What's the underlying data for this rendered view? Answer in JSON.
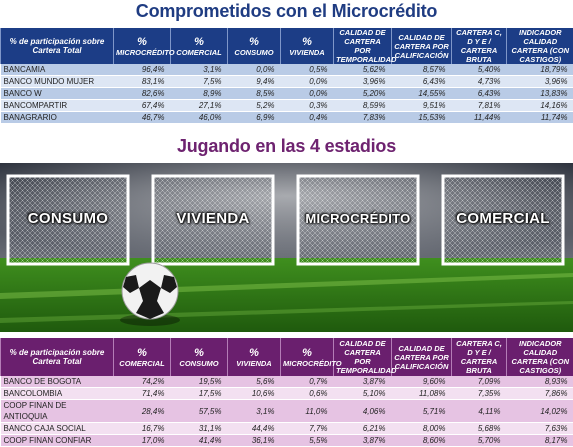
{
  "section1": {
    "title": "Comprometidos con el Microcrédito",
    "header_first": "% de participación sobre Cartera Total",
    "headers": [
      {
        "big": "%",
        "small": "MICROCRÉDITO"
      },
      {
        "big": "%",
        "small": "COMERCIAL"
      },
      {
        "big": "%",
        "small": "CONSUMO"
      },
      {
        "big": "%",
        "small": "VIVIENDA"
      },
      {
        "big": "",
        "small": "CALIDAD DE CARTERA POR TEMPORALIDAD"
      },
      {
        "big": "",
        "small": "CALIDAD DE CARTERA POR CALIFICACIÓN"
      },
      {
        "big": "",
        "small": "CARTERA C, D Y E / CARTERA BRUTA"
      },
      {
        "big": "",
        "small": "INDICADOR CALIDAD CARTERA (CON CASTIGOS)"
      }
    ],
    "rows": [
      {
        "name": "BANCAMIA",
        "values": [
          "96,4%",
          "3,1%",
          "0,0%",
          "0,5%",
          "5,62%",
          "8,57%",
          "5,40%",
          "18,79%"
        ]
      },
      {
        "name": "BANCO MUNDO MUJER",
        "values": [
          "83,1%",
          "7,5%",
          "9,4%",
          "0,0%",
          "3,96%",
          "6,43%",
          "4,73%",
          "3,96%"
        ]
      },
      {
        "name": "BANCO W",
        "values": [
          "82,6%",
          "8,9%",
          "8,5%",
          "0,0%",
          "5,20%",
          "14,55%",
          "6,43%",
          "13,83%"
        ]
      },
      {
        "name": "BANCOMPARTIR",
        "values": [
          "67,4%",
          "27,1%",
          "5,2%",
          "0,3%",
          "8,59%",
          "9,51%",
          "7,81%",
          "14,16%"
        ]
      },
      {
        "name": "BANAGRARIO",
        "values": [
          "46,7%",
          "46,0%",
          "6,9%",
          "0,4%",
          "7,83%",
          "15,53%",
          "11,44%",
          "11,74%"
        ]
      }
    ]
  },
  "section2": {
    "title": "Jugando en las 4 estadios",
    "goals": [
      "CONSUMO",
      "VIVIENDA",
      "MICROCRÉDITO",
      "COMERCIAL"
    ]
  },
  "section3": {
    "header_first": "% de participación sobre Cartera Total",
    "headers": [
      {
        "big": "%",
        "small": "COMERCIAL"
      },
      {
        "big": "%",
        "small": "CONSUMO"
      },
      {
        "big": "%",
        "small": "VIVIENDA"
      },
      {
        "big": "%",
        "small": "MICROCRÉDITO"
      },
      {
        "big": "",
        "small": "CALIDAD DE CARTERA POR TEMPORALIDAD"
      },
      {
        "big": "",
        "small": "CALIDAD DE CARTERA POR CALIFICACIÓN"
      },
      {
        "big": "",
        "small": "CARTERA C, D Y E / CARTERA BRUTA"
      },
      {
        "big": "",
        "small": "INDICADOR CALIDAD CARTERA (CON CASTIGOS)"
      }
    ],
    "rows": [
      {
        "name": "BANCO DE BOGOTA",
        "values": [
          "74,2%",
          "19,5%",
          "5,6%",
          "0,7%",
          "3,87%",
          "9,60%",
          "7,09%",
          "8,93%"
        ]
      },
      {
        "name": "BANCOLOMBIA",
        "values": [
          "71,4%",
          "17,5%",
          "10,6%",
          "0,6%",
          "5,10%",
          "11,08%",
          "7,35%",
          "7,86%"
        ]
      },
      {
        "name": "COOP FINAN DE ANTIOQUIA",
        "values": [
          "28,4%",
          "57,5%",
          "3,1%",
          "11,0%",
          "4,06%",
          "5,71%",
          "4,11%",
          "14,02%"
        ]
      },
      {
        "name": "BANCO CAJA SOCIAL",
        "values": [
          "16,7%",
          "31,1%",
          "44,4%",
          "7,7%",
          "6,21%",
          "8,00%",
          "5,68%",
          "7,63%"
        ]
      },
      {
        "name": "COOP FINAN CONFIAR",
        "values": [
          "17,0%",
          "41,4%",
          "36,1%",
          "5,5%",
          "3,87%",
          "8,60%",
          "5,70%",
          "8,17%"
        ]
      }
    ]
  },
  "colors": {
    "blue_header": "#1c3d86",
    "purple_header": "#6a1f6e",
    "title_blue": "#1f3c82",
    "title_purple": "#6e2370"
  }
}
